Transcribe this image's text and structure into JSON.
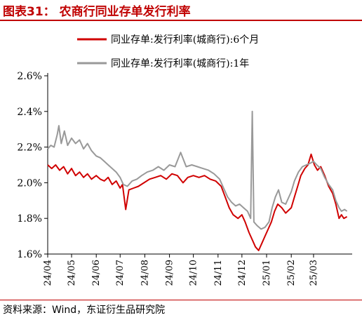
{
  "figure": {
    "title": "图表31： 农商行同业存单发行利率",
    "source": "资料来源：Wind，东证衍生品研究院"
  },
  "chart_data": {
    "type": "line",
    "title": "",
    "xlabel": "",
    "ylabel": "",
    "ylim": [
      1.6,
      2.6
    ],
    "y_ticks": [
      "1.6%",
      "1.8%",
      "2.0%",
      "2.2%",
      "2.4%",
      "2.6%"
    ],
    "x_ticks": [
      "24/04",
      "24/05",
      "24/06",
      "24/07",
      "24/08",
      "24/09",
      "24/10",
      "24/11",
      "24/12",
      "25/01",
      "25/02",
      "25/03"
    ],
    "x_range": [
      "2024-04-01",
      "2025-04-15"
    ],
    "grid": false,
    "legend_position": "top",
    "series": [
      {
        "name": "同业存单:发行利率(城商行):6个月",
        "color": "#d00000",
        "points": [
          [
            "2024-04-01",
            2.1
          ],
          [
            "2024-04-06",
            2.08
          ],
          [
            "2024-04-11",
            2.1
          ],
          [
            "2024-04-16",
            2.07
          ],
          [
            "2024-04-21",
            2.09
          ],
          [
            "2024-04-26",
            2.05
          ],
          [
            "2024-05-01",
            2.08
          ],
          [
            "2024-05-06",
            2.04
          ],
          [
            "2024-05-11",
            2.06
          ],
          [
            "2024-05-16",
            2.03
          ],
          [
            "2024-05-21",
            2.05
          ],
          [
            "2024-05-26",
            2.02
          ],
          [
            "2024-06-01",
            2.04
          ],
          [
            "2024-06-06",
            2.02
          ],
          [
            "2024-06-11",
            2.01
          ],
          [
            "2024-06-16",
            2.03
          ],
          [
            "2024-06-21",
            1.99
          ],
          [
            "2024-06-26",
            2.01
          ],
          [
            "2024-07-01",
            1.97
          ],
          [
            "2024-07-04",
            1.99
          ],
          [
            "2024-07-08",
            1.85
          ],
          [
            "2024-07-12",
            1.96
          ],
          [
            "2024-07-18",
            1.97
          ],
          [
            "2024-07-24",
            1.98
          ],
          [
            "2024-07-31",
            2.0
          ],
          [
            "2024-08-07",
            2.02
          ],
          [
            "2024-08-14",
            2.03
          ],
          [
            "2024-08-21",
            2.04
          ],
          [
            "2024-08-28",
            2.02
          ],
          [
            "2024-09-04",
            2.05
          ],
          [
            "2024-09-11",
            2.04
          ],
          [
            "2024-09-18",
            2.0
          ],
          [
            "2024-09-24",
            2.03
          ],
          [
            "2024-10-01",
            2.04
          ],
          [
            "2024-10-08",
            2.03
          ],
          [
            "2024-10-15",
            2.04
          ],
          [
            "2024-10-22",
            2.02
          ],
          [
            "2024-10-29",
            2.01
          ],
          [
            "2024-11-05",
            1.98
          ],
          [
            "2024-11-10",
            1.92
          ],
          [
            "2024-11-15",
            1.86
          ],
          [
            "2024-11-20",
            1.82
          ],
          [
            "2024-11-26",
            1.8
          ],
          [
            "2024-12-01",
            1.82
          ],
          [
            "2024-12-05",
            1.78
          ],
          [
            "2024-12-10",
            1.72
          ],
          [
            "2024-12-14",
            1.68
          ],
          [
            "2024-12-18",
            1.64
          ],
          [
            "2024-12-22",
            1.62
          ],
          [
            "2024-12-26",
            1.66
          ],
          [
            "2024-12-30",
            1.7
          ],
          [
            "2025-01-03",
            1.74
          ],
          [
            "2025-01-07",
            1.78
          ],
          [
            "2025-01-11",
            1.84
          ],
          [
            "2025-01-15",
            1.88
          ],
          [
            "2025-01-20",
            1.86
          ],
          [
            "2025-01-25",
            1.83
          ],
          [
            "2025-02-01",
            1.86
          ],
          [
            "2025-02-05",
            1.92
          ],
          [
            "2025-02-09",
            1.98
          ],
          [
            "2025-02-13",
            2.04
          ],
          [
            "2025-02-18",
            2.08
          ],
          [
            "2025-02-22",
            2.1
          ],
          [
            "2025-02-26",
            2.16
          ],
          [
            "2025-03-02",
            2.1
          ],
          [
            "2025-03-06",
            2.07
          ],
          [
            "2025-03-10",
            2.09
          ],
          [
            "2025-03-15",
            2.04
          ],
          [
            "2025-03-20",
            1.98
          ],
          [
            "2025-03-25",
            1.94
          ],
          [
            "2025-03-29",
            1.88
          ],
          [
            "2025-04-02",
            1.8
          ],
          [
            "2025-04-05",
            1.82
          ],
          [
            "2025-04-08",
            1.8
          ],
          [
            "2025-04-12",
            1.81
          ]
        ]
      },
      {
        "name": "同业存单:发行利率(城商行):1年",
        "color": "#999999",
        "points": [
          [
            "2024-04-01",
            2.19
          ],
          [
            "2024-04-05",
            2.21
          ],
          [
            "2024-04-09",
            2.2
          ],
          [
            "2024-04-13",
            2.27
          ],
          [
            "2024-04-15",
            2.32
          ],
          [
            "2024-04-18",
            2.22
          ],
          [
            "2024-04-22",
            2.29
          ],
          [
            "2024-04-26",
            2.21
          ],
          [
            "2024-05-01",
            2.25
          ],
          [
            "2024-05-06",
            2.22
          ],
          [
            "2024-05-11",
            2.24
          ],
          [
            "2024-05-16",
            2.19
          ],
          [
            "2024-05-21",
            2.22
          ],
          [
            "2024-05-26",
            2.18
          ],
          [
            "2024-06-01",
            2.15
          ],
          [
            "2024-06-06",
            2.14
          ],
          [
            "2024-06-11",
            2.12
          ],
          [
            "2024-06-16",
            2.1
          ],
          [
            "2024-06-21",
            2.08
          ],
          [
            "2024-06-26",
            2.06
          ],
          [
            "2024-07-01",
            2.03
          ],
          [
            "2024-07-05",
            1.99
          ],
          [
            "2024-07-10",
            1.98
          ],
          [
            "2024-07-16",
            2.01
          ],
          [
            "2024-07-22",
            2.02
          ],
          [
            "2024-07-28",
            2.04
          ],
          [
            "2024-08-04",
            2.06
          ],
          [
            "2024-08-11",
            2.07
          ],
          [
            "2024-08-18",
            2.09
          ],
          [
            "2024-08-25",
            2.07
          ],
          [
            "2024-09-01",
            2.1
          ],
          [
            "2024-09-08",
            2.09
          ],
          [
            "2024-09-15",
            2.17
          ],
          [
            "2024-09-22",
            2.09
          ],
          [
            "2024-09-29",
            2.1
          ],
          [
            "2024-10-06",
            2.09
          ],
          [
            "2024-10-13",
            2.08
          ],
          [
            "2024-10-20",
            2.07
          ],
          [
            "2024-10-27",
            2.05
          ],
          [
            "2024-11-03",
            2.02
          ],
          [
            "2024-11-08",
            1.97
          ],
          [
            "2024-11-13",
            1.92
          ],
          [
            "2024-11-18",
            1.89
          ],
          [
            "2024-11-23",
            1.87
          ],
          [
            "2024-11-28",
            1.88
          ],
          [
            "2024-12-03",
            1.86
          ],
          [
            "2024-12-08",
            1.84
          ],
          [
            "2024-12-12",
            1.8
          ],
          [
            "2024-12-14",
            2.4
          ],
          [
            "2024-12-16",
            1.78
          ],
          [
            "2024-12-20",
            1.76
          ],
          [
            "2024-12-25",
            1.74
          ],
          [
            "2024-12-30",
            1.75
          ],
          [
            "2025-01-04",
            1.78
          ],
          [
            "2025-01-08",
            1.86
          ],
          [
            "2025-01-12",
            1.92
          ],
          [
            "2025-01-16",
            1.96
          ],
          [
            "2025-01-20",
            1.89
          ],
          [
            "2025-01-25",
            1.88
          ],
          [
            "2025-02-01",
            1.95
          ],
          [
            "2025-02-05",
            2.01
          ],
          [
            "2025-02-10",
            2.06
          ],
          [
            "2025-02-15",
            2.09
          ],
          [
            "2025-02-20",
            2.1
          ],
          [
            "2025-02-25",
            2.11
          ],
          [
            "2025-03-01",
            2.12
          ],
          [
            "2025-03-05",
            2.1
          ],
          [
            "2025-03-10",
            2.08
          ],
          [
            "2025-03-15",
            2.03
          ],
          [
            "2025-03-20",
            1.99
          ],
          [
            "2025-03-25",
            1.96
          ],
          [
            "2025-03-29",
            1.9
          ],
          [
            "2025-04-02",
            1.86
          ],
          [
            "2025-04-05",
            1.84
          ],
          [
            "2025-04-09",
            1.85
          ],
          [
            "2025-04-12",
            1.84
          ]
        ]
      }
    ]
  }
}
